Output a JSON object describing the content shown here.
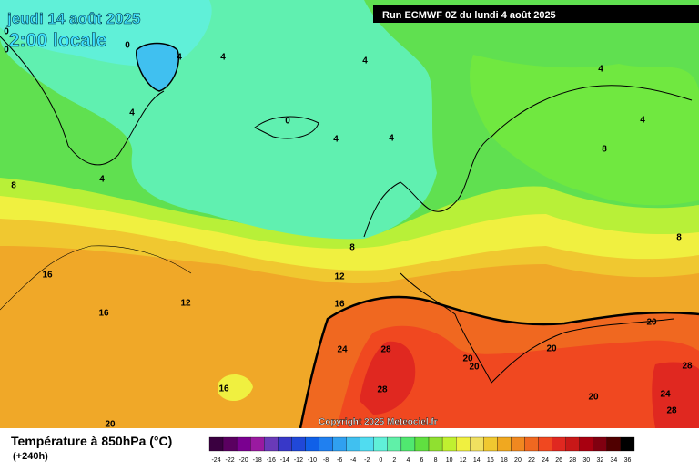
{
  "header": {
    "date": "jeudi 14 août 2025",
    "time": "2:00 locale",
    "run": "Run ECMWF 0Z du lundi 4 août 2025"
  },
  "map": {
    "contour_labels": [
      0,
      0,
      0,
      4,
      4,
      4,
      4,
      4,
      0,
      4,
      4,
      4,
      8,
      4,
      8,
      8,
      8,
      16,
      12,
      12,
      16,
      16,
      20,
      24,
      28,
      20,
      20,
      20,
      28,
      16,
      28,
      24,
      20,
      28,
      20
    ]
  },
  "footer": {
    "title": "Température à 850hPa (°C)",
    "lead": "(+240h)",
    "copyright": "Copyright 2025 Meteociel.fr"
  },
  "scale": {
    "labels": [
      -24,
      -22,
      -20,
      -18,
      -16,
      -14,
      -12,
      -10,
      -8,
      -6,
      -4,
      -2,
      0,
      2,
      4,
      6,
      8,
      10,
      12,
      14,
      16,
      18,
      20,
      22,
      24,
      26,
      28,
      30,
      32,
      34,
      36
    ],
    "colors": [
      "#3a0040",
      "#5a0060",
      "#7a0090",
      "#9a1aa0",
      "#6a3ab8",
      "#3838c8",
      "#2048d8",
      "#1060e8",
      "#2080f0",
      "#30a0f0",
      "#40c0f0",
      "#50dcf0",
      "#60f0d8",
      "#60f0a8",
      "#50e870",
      "#60e040",
      "#90e030",
      "#c0f030",
      "#f0f040",
      "#f0e060",
      "#f0c830",
      "#f0a820",
      "#f08820",
      "#f06820",
      "#f04820",
      "#e02820",
      "#c81818",
      "#a80010",
      "#800010",
      "#500000",
      "#000000"
    ]
  }
}
